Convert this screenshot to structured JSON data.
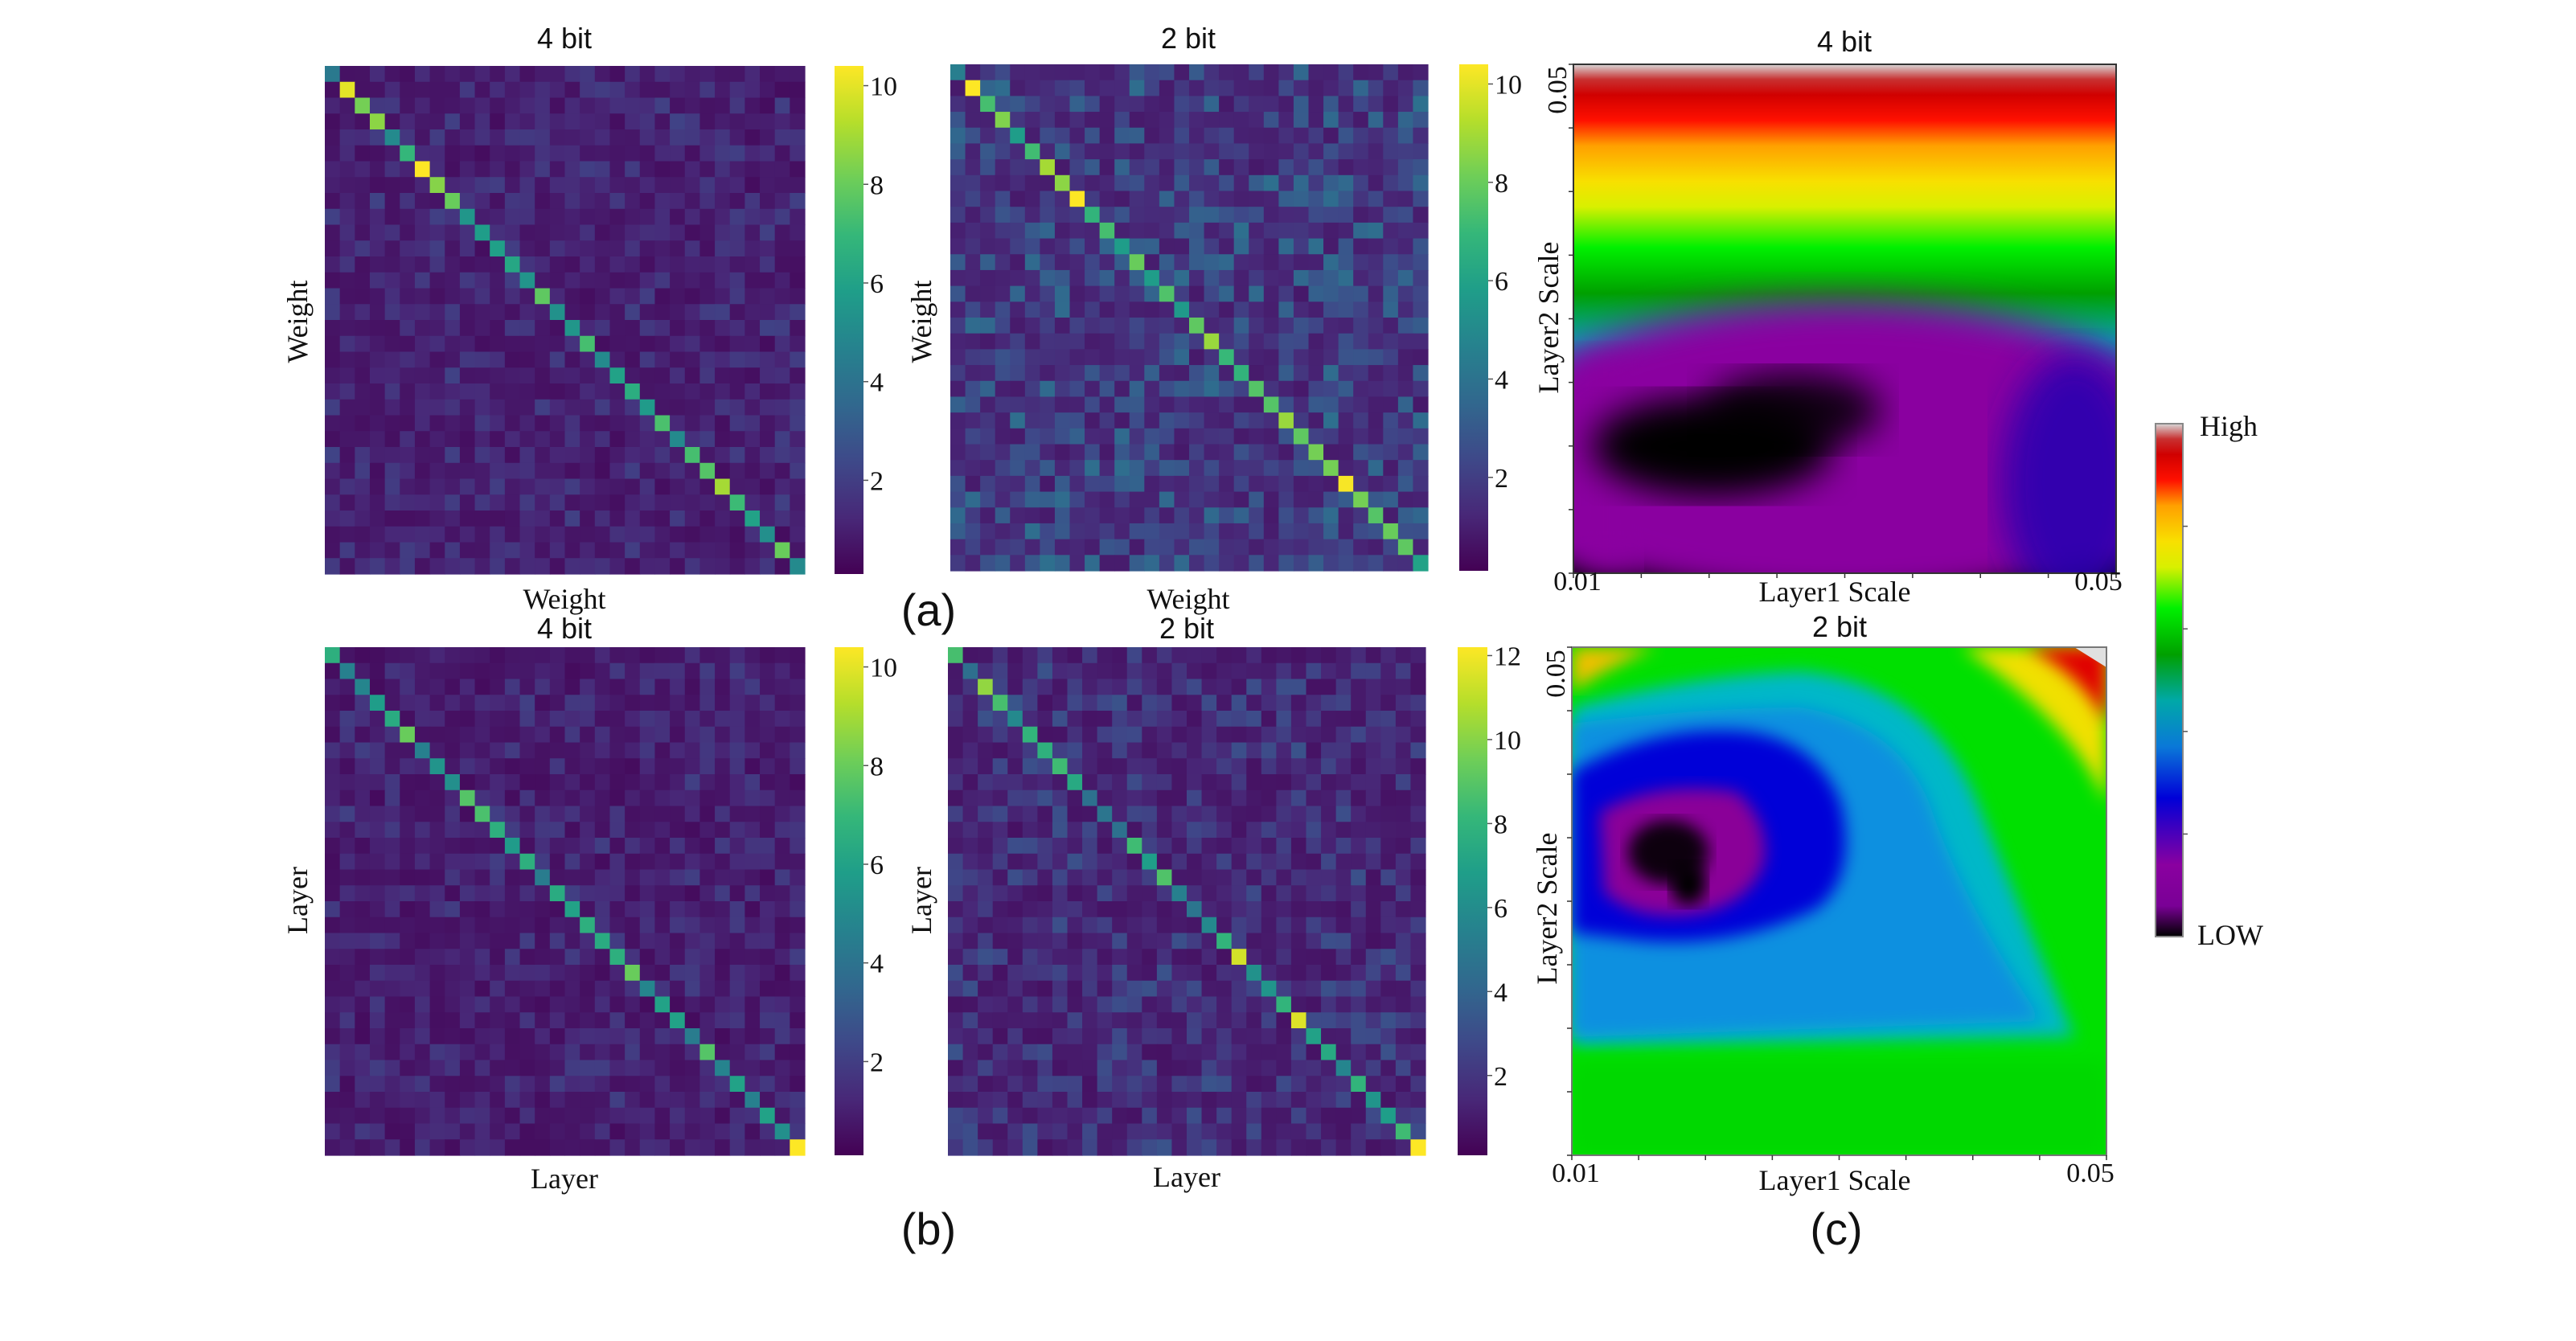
{
  "panel_labels": [
    "(a)",
    "(b)",
    "(c)"
  ],
  "colors": {
    "viridis": [
      "#440154",
      "#482878",
      "#3e4989",
      "#31688e",
      "#26828e",
      "#1f9e89",
      "#35b779",
      "#6ece58",
      "#b5de2b",
      "#fde725"
    ],
    "rainbow": [
      "#000000",
      "#7a0096",
      "#8a00a0",
      "#0000d8",
      "#0a78d8",
      "#00a8a8",
      "#00a000",
      "#00f000",
      "#d8f000",
      "#f8e000",
      "#ffa000",
      "#ff1000",
      "#d00000",
      "#c83030",
      "#d8d8d8"
    ]
  },
  "chart_data": [
    {
      "type": "heatmap",
      "id": "weight-4bit",
      "title": "4 bit",
      "xlabel": "Weight",
      "ylabel": "Weight",
      "size": 32,
      "colormap": "viridis",
      "vlim": [
        0.1,
        10.4
      ],
      "colorbar_ticks": [
        "2",
        "4",
        "6",
        "8",
        "10"
      ],
      "colorbar_tick_values": [
        2,
        4,
        6,
        8,
        10
      ],
      "diagonal": [
        4.3,
        10.0,
        8.2,
        8.6,
        5.0,
        6.9,
        10.4,
        8.5,
        8.0,
        5.5,
        5.8,
        5.9,
        6.2,
        5.4,
        7.8,
        5.3,
        5.5,
        7.3,
        5.0,
        6.0,
        6.5,
        5.7,
        7.4,
        5.0,
        7.3,
        7.6,
        9.0,
        7.1,
        6.0,
        5.2,
        8.0,
        5.0
      ],
      "off_diagonal": {
        "mean": 0.9,
        "spread": 0.9,
        "seed": 11
      }
    },
    {
      "type": "heatmap",
      "id": "weight-2bit",
      "title": "2 bit",
      "xlabel": "Weight",
      "ylabel": "Weight",
      "size": 32,
      "colormap": "viridis",
      "vlim": [
        0.1,
        10.4
      ],
      "colorbar_ticks": [
        "2",
        "4",
        "6",
        "8",
        "10"
      ],
      "colorbar_tick_values": [
        2,
        4,
        6,
        8,
        10
      ],
      "diagonal": [
        4.5,
        10.4,
        7.3,
        8.4,
        5.8,
        7.2,
        9.0,
        8.6,
        10.4,
        6.8,
        7.3,
        5.8,
        8.0,
        5.8,
        7.5,
        5.6,
        7.8,
        8.8,
        7.0,
        6.8,
        7.6,
        7.6,
        8.8,
        7.8,
        8.2,
        8.2,
        10.3,
        8.2,
        7.6,
        8.0,
        7.8,
        6.0
      ],
      "off_diagonal": {
        "mean": 1.6,
        "spread": 1.8,
        "seed": 23
      }
    },
    {
      "type": "heatmap",
      "id": "layer-4bit",
      "title": "4 bit",
      "xlabel": "Layer",
      "ylabel": "Layer",
      "size": 32,
      "colormap": "viridis",
      "vlim": [
        0.1,
        10.4
      ],
      "colorbar_ticks": [
        "2",
        "4",
        "6",
        "8",
        "10"
      ],
      "colorbar_tick_values": [
        2,
        4,
        6,
        8,
        10
      ],
      "diagonal": [
        6.6,
        4.6,
        4.8,
        5.8,
        6.4,
        8.0,
        4.6,
        5.4,
        5.2,
        7.6,
        7.4,
        6.6,
        5.7,
        6.6,
        4.4,
        6.4,
        6.0,
        6.6,
        6.4,
        6.6,
        8.0,
        4.8,
        6.0,
        6.0,
        4.4,
        7.6,
        4.7,
        6.0,
        4.6,
        6.0,
        5.2,
        10.4
      ],
      "off_diagonal": {
        "mean": 0.8,
        "spread": 0.9,
        "seed": 37
      }
    },
    {
      "type": "heatmap",
      "id": "layer-2bit",
      "title": "2 bit",
      "xlabel": "Layer",
      "ylabel": "Layer",
      "size": 32,
      "colormap": "viridis",
      "vlim": [
        0.1,
        12.2
      ],
      "colorbar_ticks": [
        "2",
        "4",
        "6",
        "8",
        "10",
        "12"
      ],
      "colorbar_tick_values": [
        2,
        4,
        6,
        8,
        10,
        12
      ],
      "diagonal": [
        8.6,
        4.5,
        10.2,
        8.6,
        5.8,
        8.0,
        7.8,
        8.4,
        7.4,
        4.6,
        4.8,
        4.6,
        8.4,
        6.8,
        8.8,
        5.4,
        4.8,
        5.8,
        8.0,
        11.4,
        6.2,
        6.4,
        8.0,
        11.6,
        7.0,
        7.4,
        5.6,
        8.0,
        6.4,
        6.8,
        8.4,
        12.2
      ],
      "off_diagonal": {
        "mean": 1.3,
        "spread": 1.5,
        "seed": 53
      }
    },
    {
      "type": "heatmap",
      "id": "landscape-4bit",
      "title": "4 bit",
      "xlabel": "Layer1 Scale",
      "ylabel": "Layer2 Scale",
      "xlim": [
        0.01,
        0.05
      ],
      "ylim": [
        0.01,
        0.05
      ],
      "x_tick_labels": [
        "0.01",
        "0.05"
      ],
      "y_tick_labels": [
        "0.05"
      ],
      "colormap": "rainbow",
      "surface": "smooth bands increasing toward top; minimum basin near (0.02, 0.018)",
      "minimum": {
        "x": 0.02,
        "y": 0.018
      }
    },
    {
      "type": "heatmap",
      "id": "landscape-2bit",
      "title": "2 bit",
      "xlabel": "Layer1 Scale",
      "ylabel": "Layer2 Scale",
      "xlim": [
        0.01,
        0.05
      ],
      "ylim": [
        0.01,
        0.05
      ],
      "x_tick_labels": [
        "0.01",
        "0.05"
      ],
      "y_tick_labels": [
        "0.05"
      ],
      "colormap": "rainbow",
      "surface": "rough bowl; maximum at top-right corner; minimum near (0.0175, 0.03)",
      "minimum": {
        "x": 0.0175,
        "y": 0.03
      }
    }
  ],
  "legend_colorbar": {
    "high_label": "High",
    "low_label": "LOW"
  }
}
